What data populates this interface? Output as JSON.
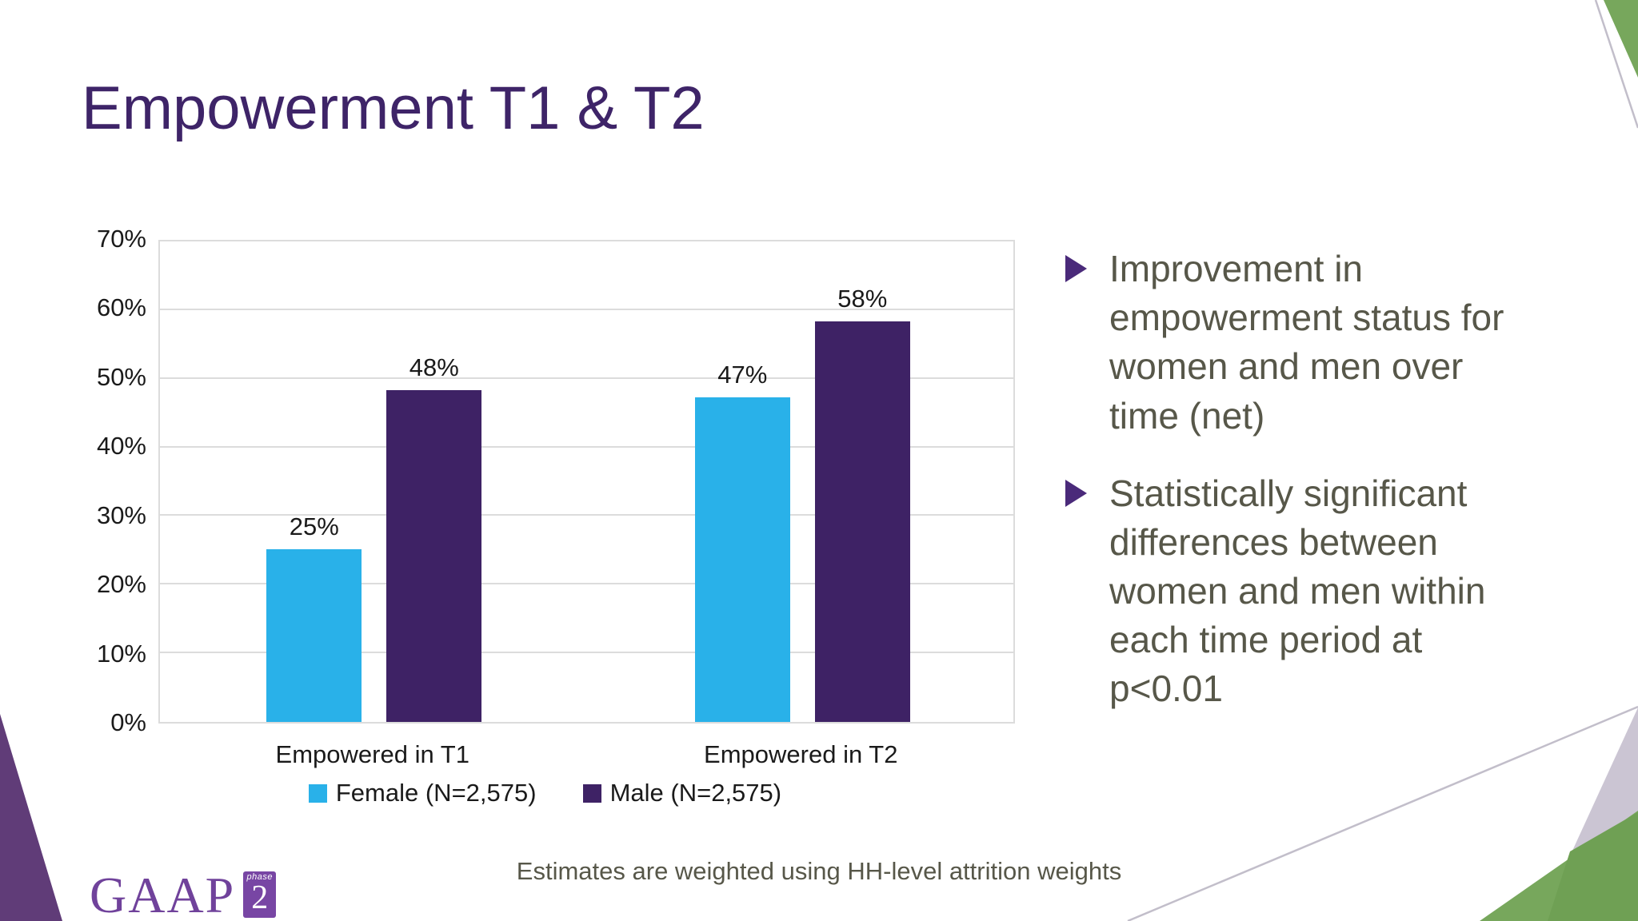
{
  "slide": {
    "title": "Empowerment T1 & T2",
    "bullets": [
      "Improvement in empowerment status for women and men over time (net)",
      "Statistically significant differences between women and men within each time period at p<0.01"
    ],
    "footer": "Estimates are weighted using HH-level attrition weights"
  },
  "chart_data": {
    "type": "bar",
    "categories": [
      "Empowered in T1",
      "Empowered in T2"
    ],
    "series": [
      {
        "name": "Female (N=2,575)",
        "color": "#29B1E9",
        "values": [
          25,
          47
        ]
      },
      {
        "name": "Male (N=2,575)",
        "color": "#3E2265",
        "values": [
          48,
          58
        ]
      }
    ],
    "data_labels": [
      "25%",
      "48%",
      "47%",
      "58%"
    ],
    "ylim": [
      0,
      70
    ],
    "ytick_step": 10,
    "ytick_labels": [
      "0%",
      "10%",
      "20%",
      "30%",
      "40%",
      "50%",
      "60%",
      "70%"
    ],
    "grid": true,
    "legend_position": "bottom"
  },
  "logo": {
    "text": "GAAP",
    "phase_label": "phase",
    "phase_number": "2"
  },
  "colors": {
    "title": "#3E2468",
    "text": "#575749",
    "chart_text": "#1A1A1A",
    "marker": "#4A2A7A",
    "grid": "#DCDCDC",
    "green": "#77A75C",
    "green_dark": "#6FA054",
    "lavender": "#CBC5D3",
    "purple_wedge": "#603C78",
    "line": "#C2BECA",
    "logo": "#70429B",
    "logo_box": "#7846A4"
  }
}
